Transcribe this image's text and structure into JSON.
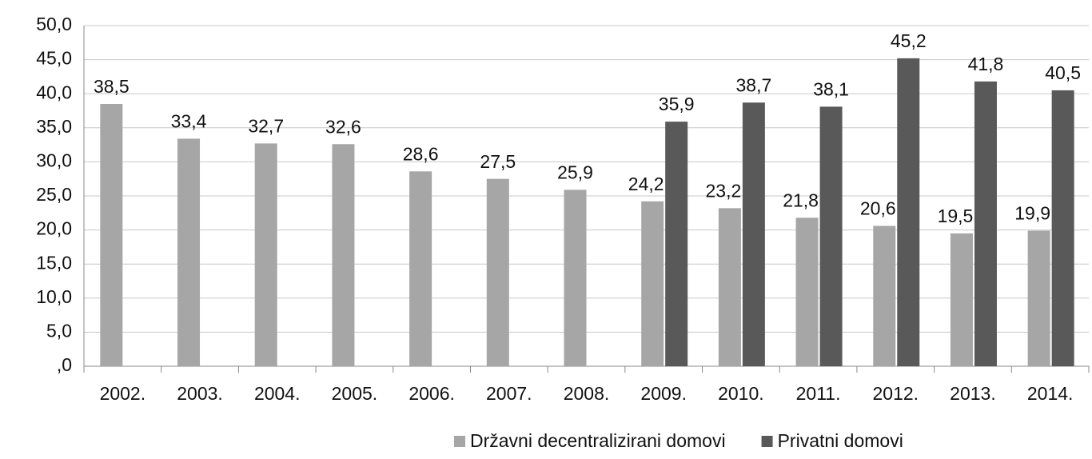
{
  "chart_data": {
    "type": "bar",
    "categories": [
      "2002.",
      "2003.",
      "2004.",
      "2005.",
      "2006.",
      "2007.",
      "2008.",
      "2009.",
      "2010.",
      "2011.",
      "2012.",
      "2013.",
      "2014."
    ],
    "series": [
      {
        "name": "Državni decentralizirani domovi",
        "color": "#a6a6a6",
        "values": [
          38.5,
          33.4,
          32.7,
          32.6,
          28.6,
          27.5,
          25.9,
          24.2,
          23.2,
          21.8,
          20.6,
          19.5,
          19.9
        ],
        "value_labels": [
          "38,5",
          "33,4",
          "32,7",
          "32,6",
          "28,6",
          "27,5",
          "25,9",
          "24,2",
          "23,2",
          "21,8",
          "20,6",
          "19,5",
          "19,9"
        ]
      },
      {
        "name": "Privatni domovi",
        "color": "#595959",
        "values": [
          null,
          null,
          null,
          null,
          null,
          null,
          null,
          35.9,
          38.7,
          38.1,
          45.2,
          41.8,
          40.5
        ],
        "value_labels": [
          null,
          null,
          null,
          null,
          null,
          null,
          null,
          "35,9",
          "38,7",
          "38,1",
          "45,2",
          "41,8",
          "40,5"
        ]
      }
    ],
    "ylim": [
      0,
      50
    ],
    "yticks": [
      {
        "value": 0,
        "label": ",0"
      },
      {
        "value": 5,
        "label": "5,0"
      },
      {
        "value": 10,
        "label": "10,0"
      },
      {
        "value": 15,
        "label": "15,0"
      },
      {
        "value": 20,
        "label": "20,0"
      },
      {
        "value": 25,
        "label": "25,0"
      },
      {
        "value": 30,
        "label": "30,0"
      },
      {
        "value": 35,
        "label": "35,0"
      },
      {
        "value": 40,
        "label": "40,0"
      },
      {
        "value": 45,
        "label": "45,0"
      },
      {
        "value": 50,
        "label": "50,0"
      }
    ],
    "grid": true,
    "legend": "bottom"
  }
}
